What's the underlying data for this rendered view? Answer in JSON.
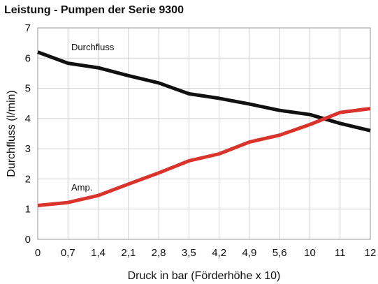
{
  "chart_data": {
    "type": "line",
    "title": "Leistung - Pumpen der Serie 9300",
    "xlabel": "Druck in bar (Förderhöhe x 10)",
    "ylabel": "Durchfluss (l/min)",
    "x_tick_labels": [
      "0",
      "0,7",
      "1,4",
      "2,1",
      "2,8",
      "3,5",
      "4,2",
      "4,9",
      "5,6",
      "10",
      "11",
      "12"
    ],
    "y_ticks": [
      0,
      1,
      2,
      3,
      4,
      5,
      6,
      7
    ],
    "ylim": [
      0,
      7
    ],
    "grid": true,
    "series": [
      {
        "name": "Durchfluss",
        "color": "#111111",
        "values": [
          6.2,
          5.83,
          5.68,
          5.42,
          5.18,
          4.82,
          4.67,
          4.48,
          4.27,
          4.13,
          3.84,
          3.6
        ]
      },
      {
        "name": "Amp.",
        "color": "#d9332b",
        "values": [
          1.12,
          1.22,
          1.45,
          1.83,
          2.2,
          2.6,
          2.83,
          3.22,
          3.45,
          3.8,
          4.2,
          4.33
        ]
      }
    ]
  }
}
